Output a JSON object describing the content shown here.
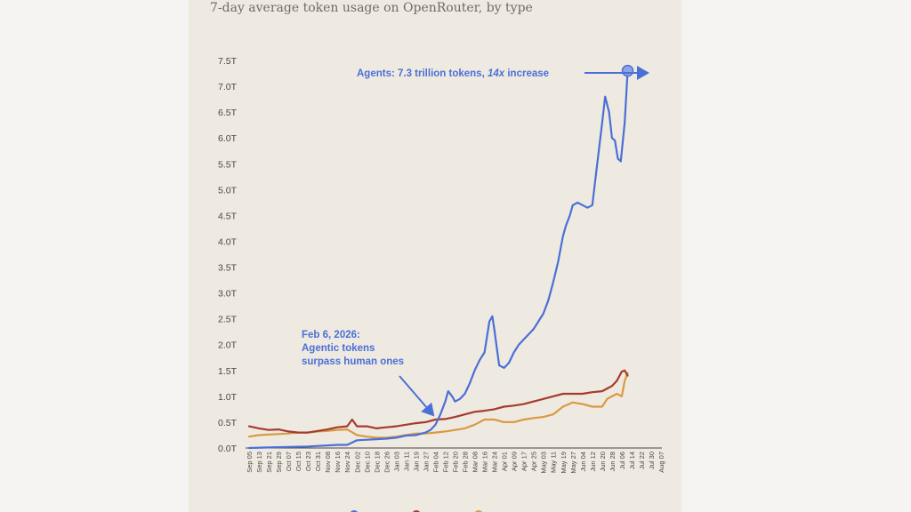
{
  "title": "7-day average token usage on OpenRouter, by type",
  "chart_data": {
    "type": "line",
    "title": "7-day average token usage on OpenRouter, by type",
    "xlabel": "",
    "ylabel": "",
    "ylim": [
      0,
      7.5
    ],
    "y_unit": "trillion tokens",
    "y_ticks": [
      "0.0T",
      "0.5T",
      "1.0T",
      "1.5T",
      "2.0T",
      "2.5T",
      "3.0T",
      "3.5T",
      "4.0T",
      "4.5T",
      "5.0T",
      "5.5T",
      "6.0T",
      "6.5T",
      "7.0T",
      "7.5T"
    ],
    "x_ticks": [
      "Sep 05",
      "Sep 13",
      "Sep 21",
      "Sep 29",
      "Oct 07",
      "Oct 15",
      "Oct 23",
      "Oct 31",
      "Nov 08",
      "Nov 16",
      "Nov 24",
      "Dec 02",
      "Dec 10",
      "Dec 18",
      "Dec 26",
      "Jan 03",
      "Jan 11",
      "Jan 19",
      "Jan 27",
      "Feb 04",
      "Feb 12",
      "Feb 20",
      "Feb 28",
      "Mar 08",
      "Mar 16",
      "Mar 24",
      "Apr 01",
      "Apr 09",
      "Apr 17",
      "Apr 25",
      "May 03",
      "May 11",
      "May 19",
      "May 27",
      "Jun 04",
      "Jun 12",
      "Jun 20",
      "Jun 28",
      "Jul 06",
      "Jul 14",
      "Jul 22",
      "Jul 30",
      "Aug 07"
    ],
    "grid": false,
    "legend": "bottom",
    "series": [
      {
        "color": "#4a6fd6",
        "values": [
          [
            0,
            0.0
          ],
          [
            2,
            0.01
          ],
          [
            4,
            0.02
          ],
          [
            6,
            0.03
          ],
          [
            8,
            0.05
          ],
          [
            9,
            0.06
          ],
          [
            10,
            0.06
          ],
          [
            11,
            0.15
          ],
          [
            12,
            0.16
          ],
          [
            13,
            0.17
          ],
          [
            14,
            0.18
          ],
          [
            15,
            0.2
          ],
          [
            16,
            0.24
          ],
          [
            17,
            0.25
          ],
          [
            18,
            0.3
          ],
          [
            18.5,
            0.35
          ],
          [
            19,
            0.45
          ],
          [
            19.5,
            0.65
          ],
          [
            20,
            0.9
          ],
          [
            20.3,
            1.1
          ],
          [
            20.7,
            1.0
          ],
          [
            21,
            0.9
          ],
          [
            21.5,
            0.95
          ],
          [
            22,
            1.05
          ],
          [
            22.5,
            1.25
          ],
          [
            23,
            1.5
          ],
          [
            23.5,
            1.7
          ],
          [
            24,
            1.85
          ],
          [
            24.5,
            2.45
          ],
          [
            24.8,
            2.55
          ],
          [
            25,
            2.3
          ],
          [
            25.5,
            1.6
          ],
          [
            26,
            1.55
          ],
          [
            26.5,
            1.65
          ],
          [
            27,
            1.85
          ],
          [
            27.5,
            2.0
          ],
          [
            28,
            2.1
          ],
          [
            28.5,
            2.2
          ],
          [
            29,
            2.3
          ],
          [
            29.5,
            2.45
          ],
          [
            30,
            2.6
          ],
          [
            30.5,
            2.85
          ],
          [
            31,
            3.2
          ],
          [
            31.5,
            3.6
          ],
          [
            32,
            4.1
          ],
          [
            32.3,
            4.3
          ],
          [
            32.7,
            4.5
          ],
          [
            33,
            4.7
          ],
          [
            33.5,
            4.75
          ],
          [
            34,
            4.7
          ],
          [
            34.5,
            4.65
          ],
          [
            35,
            4.7
          ],
          [
            35.5,
            5.5
          ],
          [
            36,
            6.3
          ],
          [
            36.3,
            6.8
          ],
          [
            36.7,
            6.5
          ],
          [
            37,
            6.0
          ],
          [
            37.3,
            5.95
          ],
          [
            37.6,
            5.6
          ],
          [
            37.9,
            5.55
          ],
          [
            38.3,
            6.3
          ],
          [
            38.6,
            7.3
          ]
        ]
      },
      {
        "color": "#a63a2e",
        "values": [
          [
            0,
            0.42
          ],
          [
            1,
            0.38
          ],
          [
            2,
            0.35
          ],
          [
            3,
            0.36
          ],
          [
            4,
            0.32
          ],
          [
            5,
            0.3
          ],
          [
            6,
            0.3
          ],
          [
            7,
            0.33
          ],
          [
            8,
            0.36
          ],
          [
            9,
            0.4
          ],
          [
            10,
            0.42
          ],
          [
            10.5,
            0.55
          ],
          [
            11,
            0.42
          ],
          [
            12,
            0.42
          ],
          [
            13,
            0.38
          ],
          [
            14,
            0.4
          ],
          [
            15,
            0.42
          ],
          [
            16,
            0.45
          ],
          [
            17,
            0.48
          ],
          [
            18,
            0.5
          ],
          [
            19,
            0.55
          ],
          [
            20,
            0.56
          ],
          [
            21,
            0.6
          ],
          [
            22,
            0.65
          ],
          [
            23,
            0.7
          ],
          [
            24,
            0.72
          ],
          [
            25,
            0.75
          ],
          [
            26,
            0.8
          ],
          [
            27,
            0.82
          ],
          [
            28,
            0.85
          ],
          [
            29,
            0.9
          ],
          [
            30,
            0.95
          ],
          [
            31,
            1.0
          ],
          [
            32,
            1.05
          ],
          [
            33,
            1.05
          ],
          [
            34,
            1.05
          ],
          [
            35,
            1.08
          ],
          [
            36,
            1.1
          ],
          [
            36.5,
            1.15
          ],
          [
            37,
            1.2
          ],
          [
            37.5,
            1.3
          ],
          [
            38,
            1.48
          ],
          [
            38.3,
            1.5
          ],
          [
            38.6,
            1.4
          ]
        ]
      },
      {
        "color": "#d99a42",
        "values": [
          [
            0,
            0.22
          ],
          [
            1,
            0.25
          ],
          [
            2,
            0.26
          ],
          [
            3,
            0.27
          ],
          [
            4,
            0.28
          ],
          [
            5,
            0.3
          ],
          [
            6,
            0.3
          ],
          [
            7,
            0.32
          ],
          [
            8,
            0.33
          ],
          [
            9,
            0.35
          ],
          [
            10,
            0.36
          ],
          [
            11,
            0.25
          ],
          [
            12,
            0.22
          ],
          [
            13,
            0.2
          ],
          [
            14,
            0.2
          ],
          [
            15,
            0.22
          ],
          [
            16,
            0.25
          ],
          [
            17,
            0.28
          ],
          [
            18,
            0.28
          ],
          [
            19,
            0.3
          ],
          [
            20,
            0.32
          ],
          [
            21,
            0.35
          ],
          [
            22,
            0.38
          ],
          [
            23,
            0.45
          ],
          [
            24,
            0.55
          ],
          [
            25,
            0.55
          ],
          [
            26,
            0.5
          ],
          [
            27,
            0.5
          ],
          [
            28,
            0.55
          ],
          [
            29,
            0.58
          ],
          [
            30,
            0.6
          ],
          [
            31,
            0.65
          ],
          [
            32,
            0.8
          ],
          [
            33,
            0.88
          ],
          [
            34,
            0.85
          ],
          [
            35,
            0.8
          ],
          [
            36,
            0.8
          ],
          [
            36.5,
            0.95
          ],
          [
            37,
            1.0
          ],
          [
            37.5,
            1.05
          ],
          [
            38,
            1.0
          ],
          [
            38.3,
            1.3
          ],
          [
            38.6,
            1.45
          ]
        ]
      }
    ],
    "annotations": [
      {
        "text_lines": [
          "Feb 6, 2026:",
          "Agentic tokens",
          "surpass human ones"
        ]
      },
      {
        "text": "Agents: 7.3 trillion tokens, ",
        "emphasis": "14x",
        "text_after": " increase"
      }
    ]
  }
}
